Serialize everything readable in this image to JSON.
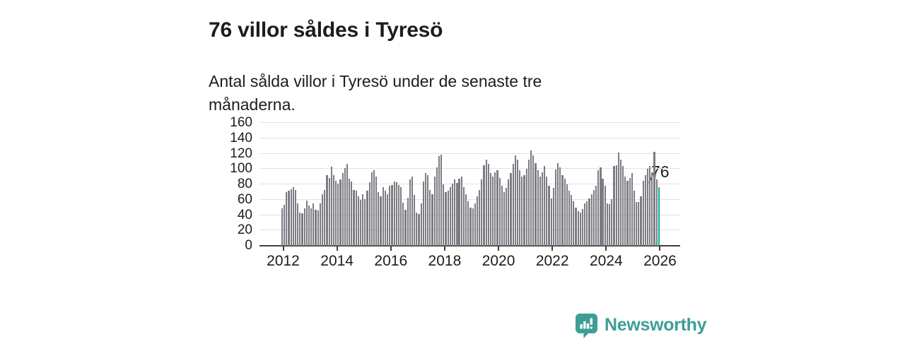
{
  "header": {
    "title": "76 villor såldes i Tyresö",
    "subtitle": "Antal sålda villor i Tyresö under de senaste tre månaderna."
  },
  "annotation": {
    "label": "76"
  },
  "branding": {
    "name": "Newsworthy"
  },
  "colors": {
    "bar": "#7c7c84",
    "highlight": "#00b3a4",
    "grid": "#e2e2e2",
    "axis": "#3f3f3f",
    "text": "#1d1d1b",
    "brand": "#3d9e96",
    "background": "#ffffff"
  },
  "chart_data": {
    "type": "bar",
    "title": "76 villor såldes i Tyresö",
    "xlabel": "",
    "ylabel": "",
    "frequency": "monthly",
    "x_start": "2012-01",
    "x_end": "2026-01",
    "ylim": [
      0,
      160
    ],
    "yticks": [
      0,
      20,
      40,
      60,
      80,
      100,
      120,
      140,
      160
    ],
    "xticks": [
      2012,
      2014,
      2016,
      2018,
      2020,
      2022,
      2024,
      2026
    ],
    "grid": true,
    "legend": false,
    "highlight_last_value": 76,
    "values": [
      49,
      53,
      70,
      72,
      74,
      76,
      73,
      55,
      43,
      42,
      49,
      59,
      52,
      49,
      55,
      47,
      46,
      55,
      67,
      73,
      92,
      88,
      103,
      92,
      85,
      81,
      86,
      95,
      101,
      107,
      87,
      84,
      73,
      72,
      64,
      60,
      67,
      61,
      72,
      83,
      96,
      98,
      90,
      70,
      64,
      76,
      72,
      67,
      78,
      79,
      84,
      83,
      79,
      76,
      56,
      47,
      63,
      86,
      90,
      66,
      43,
      41,
      55,
      84,
      95,
      92,
      73,
      67,
      90,
      102,
      117,
      119,
      80,
      70,
      72,
      76,
      81,
      86,
      82,
      87,
      90,
      76,
      67,
      58,
      50,
      49,
      55,
      64,
      73,
      86,
      105,
      112,
      107,
      95,
      90,
      96,
      98,
      88,
      78,
      70,
      75,
      86,
      95,
      107,
      118,
      112,
      98,
      90,
      92,
      100,
      112,
      124,
      118,
      108,
      98,
      90,
      96,
      104,
      90,
      78,
      62,
      75,
      99,
      108,
      102,
      92,
      87,
      80,
      72,
      66,
      58,
      50,
      45,
      43,
      48,
      55,
      58,
      62,
      67,
      73,
      78,
      98,
      102,
      87,
      78,
      55,
      54,
      61,
      104,
      105,
      121,
      112,
      104,
      90,
      85,
      88,
      95,
      72,
      57,
      57,
      64,
      85,
      92,
      100,
      104,
      96,
      122,
      86,
      76
    ]
  }
}
